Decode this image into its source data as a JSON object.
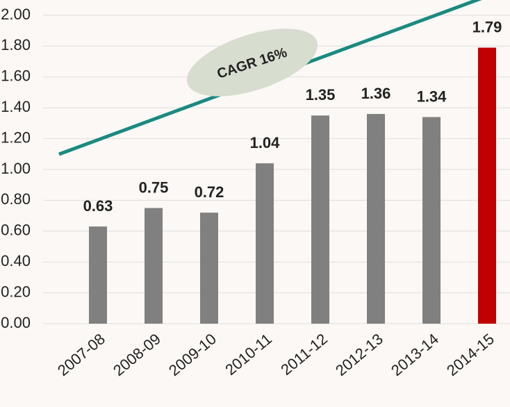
{
  "chart_data": {
    "type": "bar",
    "categories": [
      "2007-08",
      "2008-09",
      "2009-10",
      "2010-11",
      "2011-12",
      "2012-13",
      "2013-14",
      "2014-15"
    ],
    "values": [
      0.63,
      0.75,
      0.72,
      1.04,
      1.35,
      1.36,
      1.34,
      1.79
    ],
    "colors": [
      "#808080",
      "#808080",
      "#808080",
      "#808080",
      "#808080",
      "#808080",
      "#808080",
      "#c00000"
    ],
    "ylim": [
      0,
      2
    ],
    "yticks": [
      {
        "value": 0,
        "label": "0.00"
      },
      {
        "value": 0.2,
        "label": "0.20"
      },
      {
        "value": 0.4,
        "label": "0.40"
      },
      {
        "value": 0.6,
        "label": "0.60"
      },
      {
        "value": 0.8,
        "label": "0.80"
      },
      {
        "value": 1,
        "label": "1.00"
      },
      {
        "value": 1.2,
        "label": "1.20"
      },
      {
        "value": 1.4,
        "label": "1.40"
      },
      {
        "value": 1.6,
        "label": "1.60"
      },
      {
        "value": 1.8,
        "label": "1.80"
      },
      {
        "value": 2,
        "label": "2.00"
      }
    ],
    "grid": true,
    "annotation": "CAGR 16%"
  }
}
